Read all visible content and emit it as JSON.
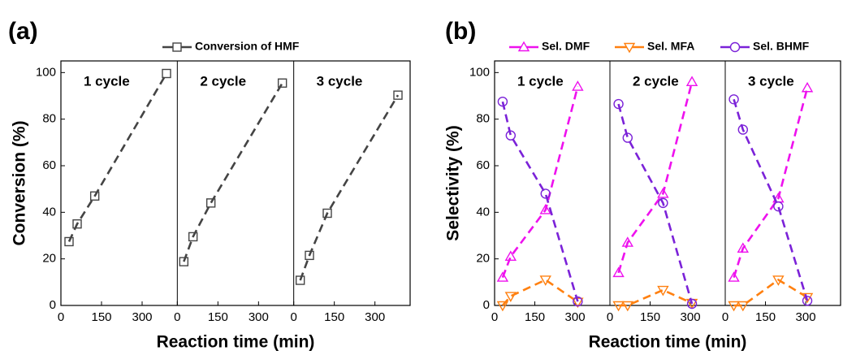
{
  "chart_data": [
    {
      "type": "line",
      "title": "(a)",
      "xlabel": "Reaction time (min)",
      "ylabel": "Conversion (%)",
      "xlim": [
        0,
        430
      ],
      "xticks": [
        0,
        150,
        300
      ],
      "ylim": [
        0,
        105
      ],
      "yticks": [
        0,
        20,
        40,
        60,
        80,
        100
      ],
      "annotations": [
        "1 cycle",
        "2 cycle",
        "3 cycle"
      ],
      "x": [
        [
          30,
          60,
          125,
          390
        ],
        [
          24,
          58,
          124,
          388
        ],
        [
          24,
          58,
          124,
          385
        ]
      ],
      "series": [
        {
          "name": "Conversion of HMF",
          "color": "#444444",
          "marker": "square",
          "values": [
            [
              27.4,
              35,
              47,
              99.6
            ],
            [
              18.8,
              29.5,
              44,
              95.5
            ],
            [
              10.8,
              21.5,
              39.6,
              90.3
            ]
          ]
        }
      ]
    },
    {
      "type": "line",
      "title": "(b)",
      "xlabel": "Reaction time (min)",
      "ylabel": "Selectivity (%)",
      "xlim": [
        0,
        430
      ],
      "xticks": [
        0,
        150,
        300
      ],
      "ylim": [
        0,
        105
      ],
      "yticks": [
        0,
        20,
        40,
        60,
        80,
        100
      ],
      "annotations": [
        "1 cycle",
        "2 cycle",
        "3 cycle"
      ],
      "x": [
        [
          30,
          60,
          190,
          310
        ],
        [
          32,
          66,
          198,
          306
        ],
        [
          32,
          66,
          198,
          306
        ]
      ],
      "series": [
        {
          "name": "Sel. DMF",
          "color": "#ee11ee",
          "marker": "triangle-up",
          "values": [
            [
              12,
              21,
              41,
              94
            ],
            [
              14,
              27,
              48,
              96
            ],
            [
              12,
              24.5,
              46,
              93.4
            ]
          ]
        },
        {
          "name": "Sel. MFA",
          "color": "#ff8010",
          "marker": "triangle-down",
          "values": [
            [
              0,
              4,
              11,
              1.5
            ],
            [
              0,
              0,
              6.6,
              1
            ],
            [
              0,
              0,
              11,
              3.5
            ]
          ]
        },
        {
          "name": "Sel. BHMF",
          "color": "#7b22d8",
          "marker": "circle",
          "values": [
            [
              87.5,
              73,
              48,
              1.7
            ],
            [
              86.5,
              72,
              44,
              0.7
            ],
            [
              88.5,
              75.5,
              42.5,
              2
            ]
          ]
        }
      ]
    }
  ]
}
